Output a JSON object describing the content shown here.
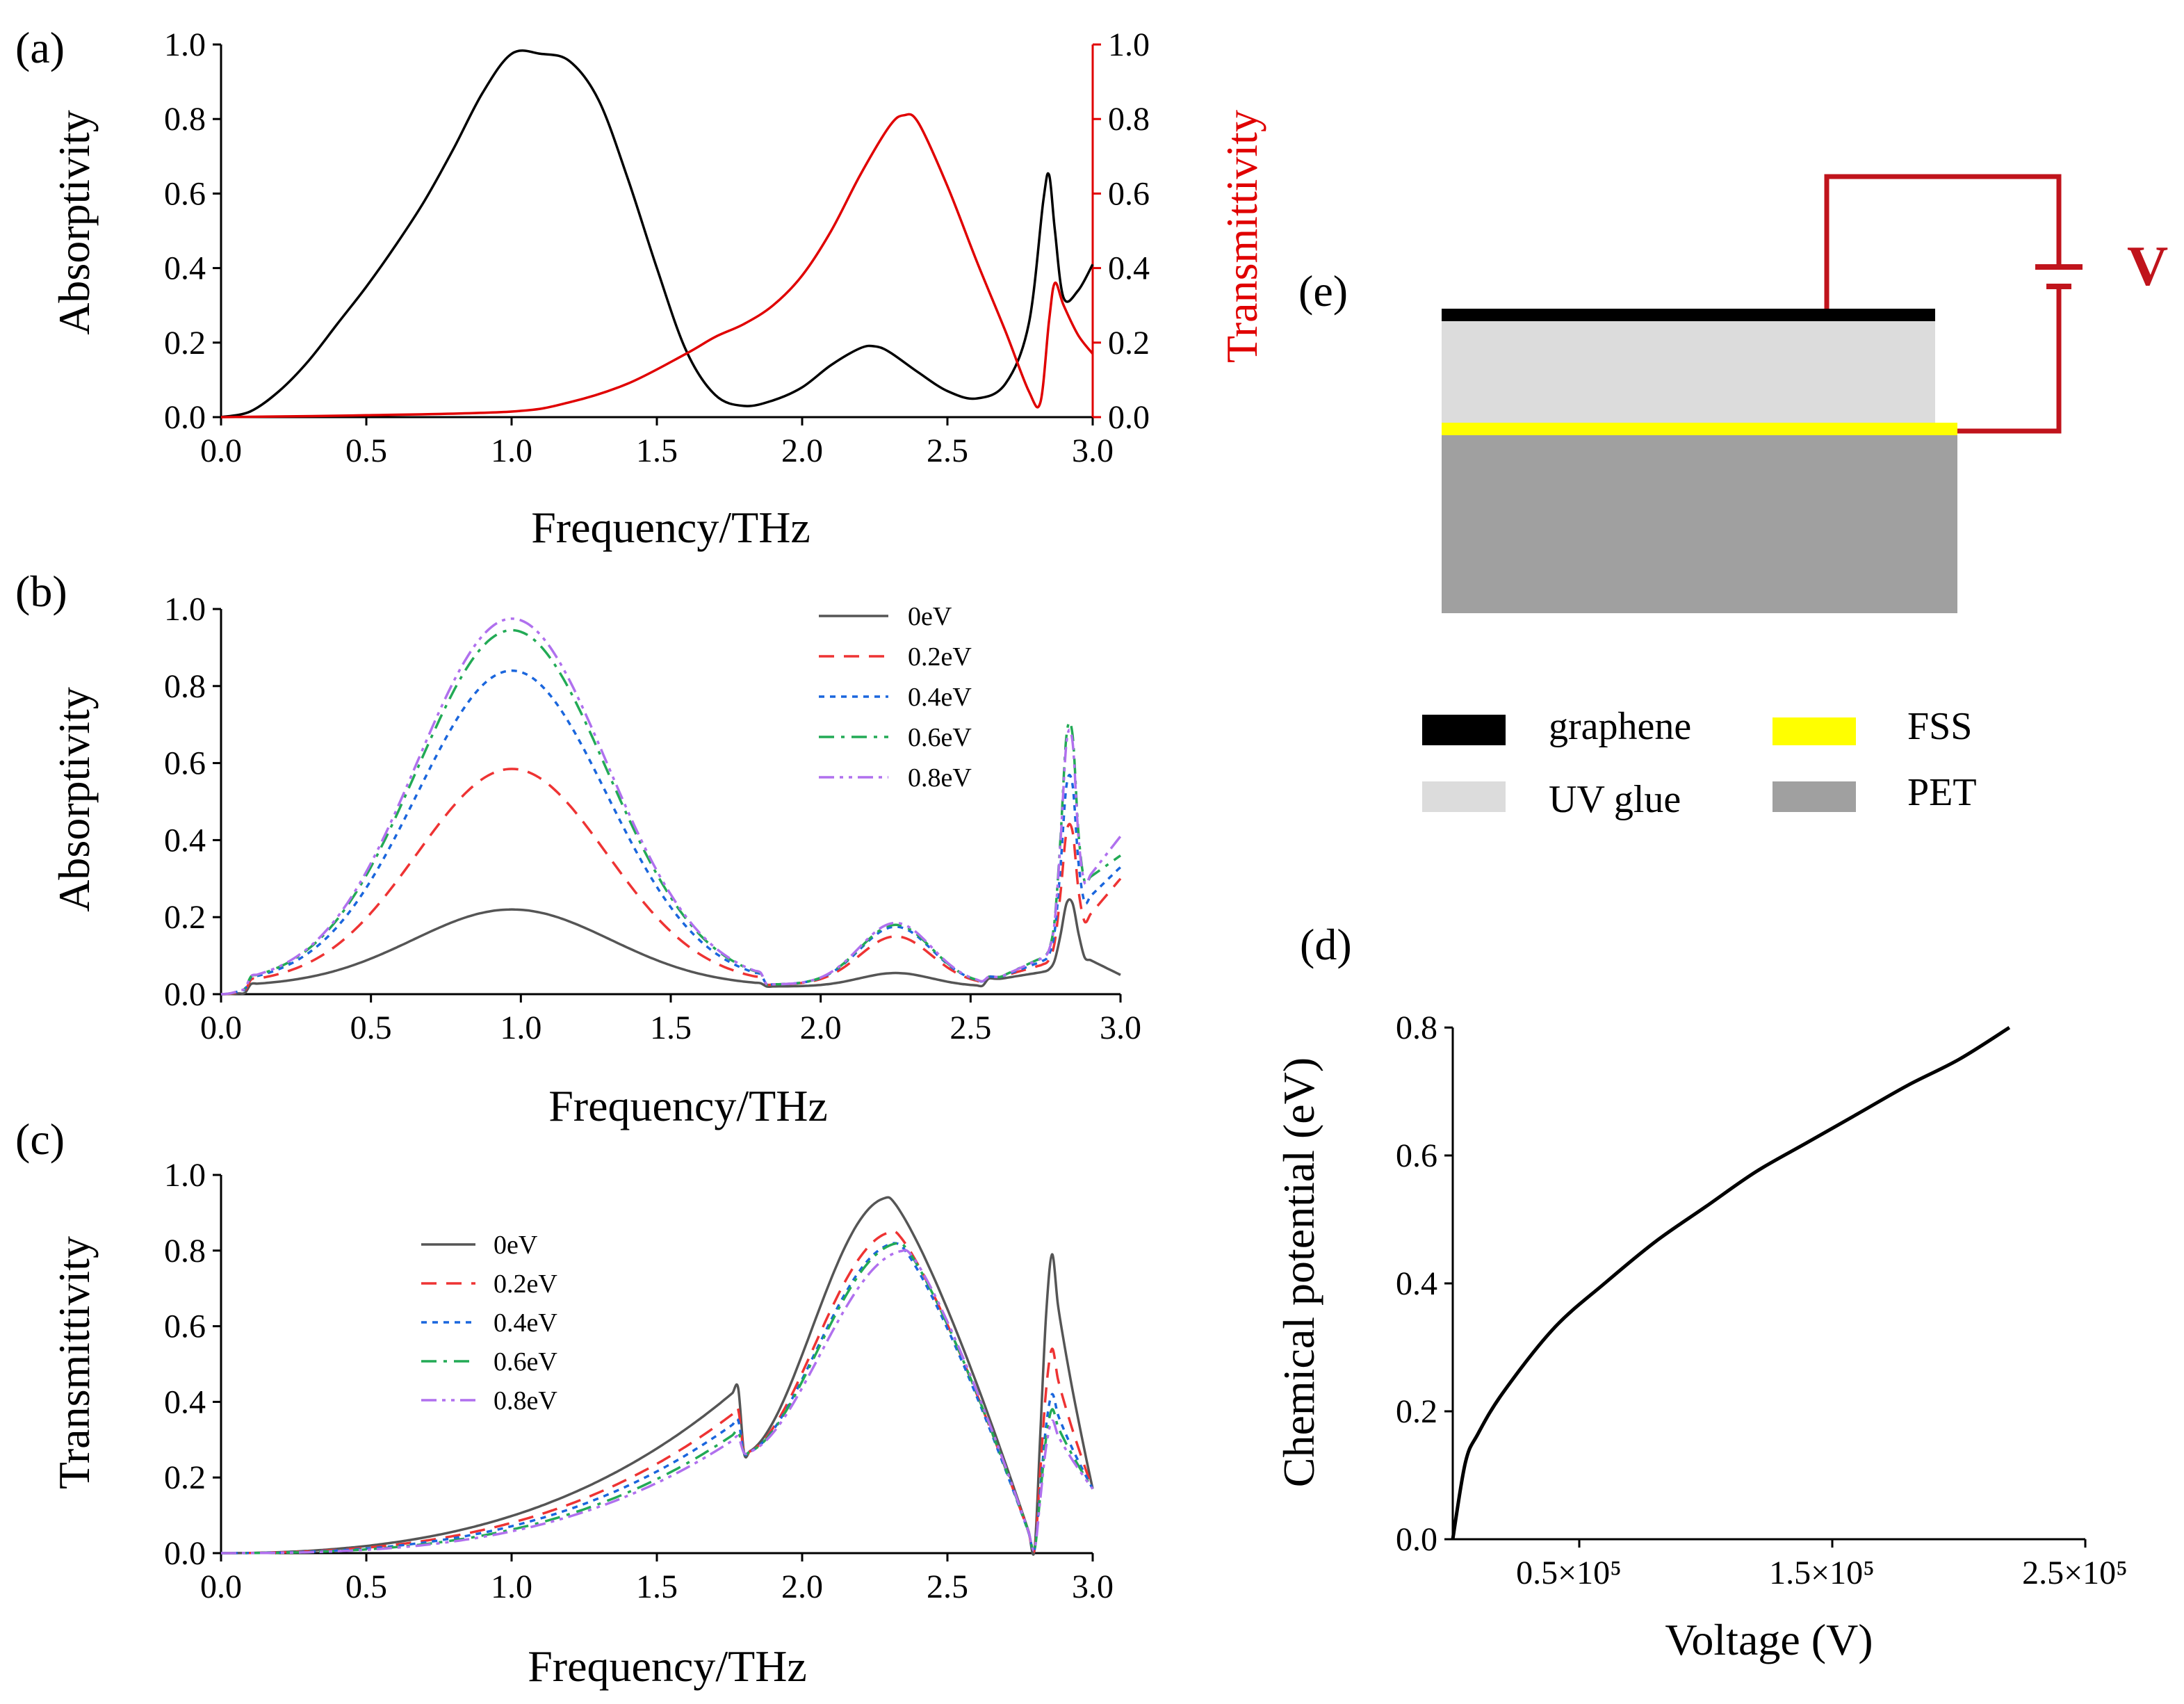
{
  "colors": {
    "axis": "#000000",
    "transmit_axis": "#e00000",
    "circuit": "#c0141c",
    "graphene": "#000000",
    "uv_glue": "#dcdcdc",
    "fss": "#ffff00",
    "pet": "#a0a0a0",
    "series": {
      "0eV": "#555555",
      "0.2eV": "#ee3333",
      "0.4eV": "#1a66dd",
      "0.6eV": "#22aa55",
      "0.8eV": "#b070ee"
    }
  },
  "panel_a": {
    "label": "(a)",
    "xlabel": "Frequency/THz",
    "ylabel_left": "Absorptivity",
    "ylabel_right": "Transmittivity",
    "xticks": [
      "0.0",
      "0.5",
      "1.0",
      "1.5",
      "2.0",
      "2.5",
      "3.0"
    ],
    "yticks": [
      "0.0",
      "0.2",
      "0.4",
      "0.6",
      "0.8",
      "1.0"
    ],
    "yticks_right": [
      "0.0",
      "0.2",
      "0.4",
      "0.6",
      "0.8",
      "1.0"
    ]
  },
  "panel_b": {
    "label": "(b)",
    "xlabel": "Frequency/THz",
    "ylabel": "Absorptivity",
    "xticks": [
      "0.0",
      "0.5",
      "1.0",
      "1.5",
      "2.0",
      "2.5",
      "3.0"
    ],
    "yticks": [
      "0.0",
      "0.2",
      "0.4",
      "0.6",
      "0.8",
      "1.0"
    ],
    "legend": [
      "0eV",
      "0.2eV",
      "0.4eV",
      "0.6eV",
      "0.8eV"
    ]
  },
  "panel_c": {
    "label": "(c)",
    "xlabel": "Frequency/THz",
    "ylabel": "Transmittivity",
    "xticks": [
      "0.0",
      "0.5",
      "1.0",
      "1.5",
      "2.0",
      "2.5",
      "3.0"
    ],
    "yticks": [
      "0.0",
      "0.2",
      "0.4",
      "0.6",
      "0.8",
      "1.0"
    ],
    "legend": [
      "0eV",
      "0.2eV",
      "0.4eV",
      "0.6eV",
      "0.8eV"
    ]
  },
  "panel_d": {
    "label": "(d)",
    "xlabel": "Voltage (V)",
    "ylabel": "Chemical potential (eV)",
    "xticks": [
      "0.5×10⁵",
      "1.5×10⁵",
      "2.5×10⁵"
    ],
    "yticks": [
      "0.0",
      "0.2",
      "0.4",
      "0.6",
      "0.8"
    ]
  },
  "panel_e": {
    "label": "(e)",
    "voltage_label": "V",
    "legend": [
      {
        "name": "graphene"
      },
      {
        "name": "FSS"
      },
      {
        "name": "UV glue"
      },
      {
        "name": "PET"
      }
    ]
  },
  "chart_data": [
    {
      "panel": "(a)",
      "type": "line",
      "xlabel": "Frequency/THz",
      "ylabel": "Absorptivity",
      "y2label": "Transmittivity",
      "xlim": [
        0,
        3
      ],
      "ylim": [
        0,
        1
      ],
      "y2lim": [
        0,
        1
      ],
      "series": [
        {
          "axis": "left",
          "color": "#000000",
          "points": [
            [
              0,
              0
            ],
            [
              0.1,
              0.015
            ],
            [
              0.2,
              0.07
            ],
            [
              0.3,
              0.15
            ],
            [
              0.4,
              0.25
            ],
            [
              0.5,
              0.35
            ],
            [
              0.6,
              0.46
            ],
            [
              0.7,
              0.58
            ],
            [
              0.8,
              0.72
            ],
            [
              0.9,
              0.87
            ],
            [
              1.0,
              0.975
            ],
            [
              1.1,
              0.975
            ],
            [
              1.2,
              0.955
            ],
            [
              1.3,
              0.85
            ],
            [
              1.4,
              0.64
            ],
            [
              1.5,
              0.4
            ],
            [
              1.6,
              0.18
            ],
            [
              1.7,
              0.06
            ],
            [
              1.8,
              0.03
            ],
            [
              1.9,
              0.045
            ],
            [
              2.0,
              0.08
            ],
            [
              2.1,
              0.14
            ],
            [
              2.2,
              0.185
            ],
            [
              2.25,
              0.19
            ],
            [
              2.3,
              0.175
            ],
            [
              2.4,
              0.12
            ],
            [
              2.5,
              0.07
            ],
            [
              2.6,
              0.05
            ],
            [
              2.7,
              0.09
            ],
            [
              2.78,
              0.25
            ],
            [
              2.83,
              0.58
            ],
            [
              2.85,
              0.65
            ],
            [
              2.87,
              0.5
            ],
            [
              2.9,
              0.32
            ],
            [
              2.95,
              0.34
            ],
            [
              3.0,
              0.41
            ]
          ]
        },
        {
          "axis": "right",
          "color": "#e00000",
          "points": [
            [
              0,
              0
            ],
            [
              0.5,
              0.005
            ],
            [
              1.0,
              0.015
            ],
            [
              1.2,
              0.04
            ],
            [
              1.4,
              0.09
            ],
            [
              1.6,
              0.17
            ],
            [
              1.7,
              0.215
            ],
            [
              1.8,
              0.25
            ],
            [
              1.9,
              0.3
            ],
            [
              2.0,
              0.38
            ],
            [
              2.1,
              0.5
            ],
            [
              2.2,
              0.65
            ],
            [
              2.3,
              0.78
            ],
            [
              2.35,
              0.81
            ],
            [
              2.4,
              0.79
            ],
            [
              2.5,
              0.62
            ],
            [
              2.6,
              0.42
            ],
            [
              2.7,
              0.23
            ],
            [
              2.78,
              0.07
            ],
            [
              2.82,
              0.04
            ],
            [
              2.85,
              0.26
            ],
            [
              2.87,
              0.36
            ],
            [
              2.9,
              0.3
            ],
            [
              2.95,
              0.22
            ],
            [
              3.0,
              0.17
            ]
          ]
        }
      ]
    },
    {
      "panel": "(b)",
      "type": "line",
      "xlabel": "Frequency/THz",
      "ylabel": "Absorptivity",
      "xlim": [
        0,
        3
      ],
      "ylim": [
        0,
        1
      ],
      "series": [
        {
          "name": "0eV",
          "dash": "solid",
          "peak1": 0.22,
          "peak2": 0.055,
          "peak3": 0.25,
          "end": 0.05,
          "dip": 0.02
        },
        {
          "name": "0.2eV",
          "dash": "dashed",
          "peak1": 0.585,
          "peak2": 0.15,
          "peak3": 0.45,
          "end": 0.3,
          "dip": 0.025
        },
        {
          "name": "0.4eV",
          "dash": "dotted",
          "peak1": 0.84,
          "peak2": 0.175,
          "peak3": 0.58,
          "end": 0.33,
          "dip": 0.025
        },
        {
          "name": "0.6eV",
          "dash": "dashdot",
          "peak1": 0.945,
          "peak2": 0.18,
          "peak3": 0.72,
          "end": 0.36,
          "dip": 0.025
        },
        {
          "name": "0.8eV",
          "dash": "dashdotdot",
          "peak1": 0.975,
          "peak2": 0.185,
          "peak3": 0.7,
          "end": 0.41,
          "dip": 0.025
        }
      ]
    },
    {
      "panel": "(c)",
      "type": "line",
      "xlabel": "Frequency/THz",
      "ylabel": "Transmittivity",
      "xlim": [
        0,
        3
      ],
      "ylim": [
        0,
        1
      ],
      "series": [
        {
          "name": "0eV",
          "dash": "solid",
          "peak": 0.94,
          "peak_x": 2.3,
          "spike": 0.79,
          "at1": 0.065
        },
        {
          "name": "0.2eV",
          "dash": "dashed",
          "peak": 0.85,
          "peak_x": 2.32,
          "spike": 0.54,
          "at1": 0.045
        },
        {
          "name": "0.4eV",
          "dash": "dotted",
          "peak": 0.82,
          "peak_x": 2.33,
          "spike": 0.42,
          "at1": 0.035
        },
        {
          "name": "0.6eV",
          "dash": "dashdot",
          "peak": 0.82,
          "peak_x": 2.34,
          "spike": 0.38,
          "at1": 0.025
        },
        {
          "name": "0.8eV",
          "dash": "dashdotdot",
          "peak": 0.8,
          "peak_x": 2.36,
          "spike": 0.35,
          "at1": 0.02
        }
      ]
    },
    {
      "panel": "(d)",
      "type": "line",
      "xlabel": "Voltage (V)",
      "ylabel": "Chemical potential (eV)",
      "xlim": [
        0,
        250000
      ],
      "ylim": [
        0,
        0.8
      ],
      "series": [
        {
          "color": "#000000",
          "points": [
            [
              0,
              0
            ],
            [
              5000,
              0.12
            ],
            [
              10000,
              0.165
            ],
            [
              20000,
              0.23
            ],
            [
              40000,
              0.33
            ],
            [
              60000,
              0.4
            ],
            [
              80000,
              0.465
            ],
            [
              100000,
              0.52
            ],
            [
              120000,
              0.575
            ],
            [
              140000,
              0.62
            ],
            [
              160000,
              0.665
            ],
            [
              180000,
              0.71
            ],
            [
              200000,
              0.75
            ],
            [
              220000,
              0.8
            ]
          ]
        }
      ]
    }
  ]
}
